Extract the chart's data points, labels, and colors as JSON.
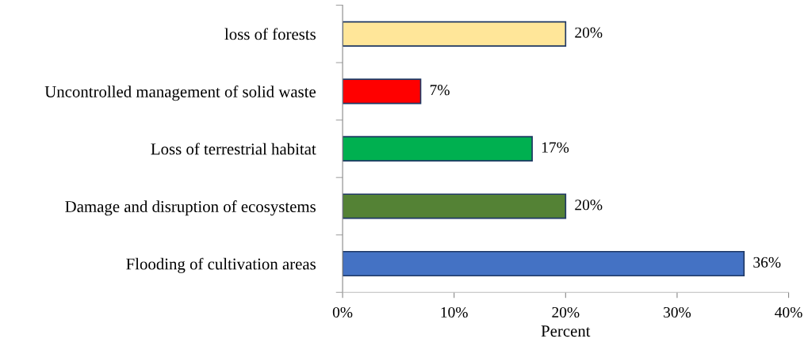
{
  "chart_data": {
    "type": "bar",
    "orientation": "horizontal",
    "xlabel": "Percent",
    "categories": [
      "loss of forests",
      "Uncontrolled management of solid waste",
      "Loss of terrestrial habitat",
      "Damage and disruption of ecosystems",
      "Flooding of cultivation areas"
    ],
    "values": [
      20,
      7,
      17,
      20,
      36
    ],
    "colors": [
      "#ffe699",
      "#ff0000",
      "#00b050",
      "#548235",
      "#4472c4"
    ],
    "value_labels": [
      "20%",
      "7%",
      "17%",
      "20%",
      "36%"
    ],
    "xlim": [
      0,
      40
    ],
    "xticks": [
      {
        "value": 0,
        "label": "0%"
      },
      {
        "value": 10,
        "label": "10%"
      },
      {
        "value": 20,
        "label": "20%"
      },
      {
        "value": 30,
        "label": "30%"
      },
      {
        "value": 40,
        "label": "40%"
      }
    ],
    "grid": false,
    "legend": false
  }
}
